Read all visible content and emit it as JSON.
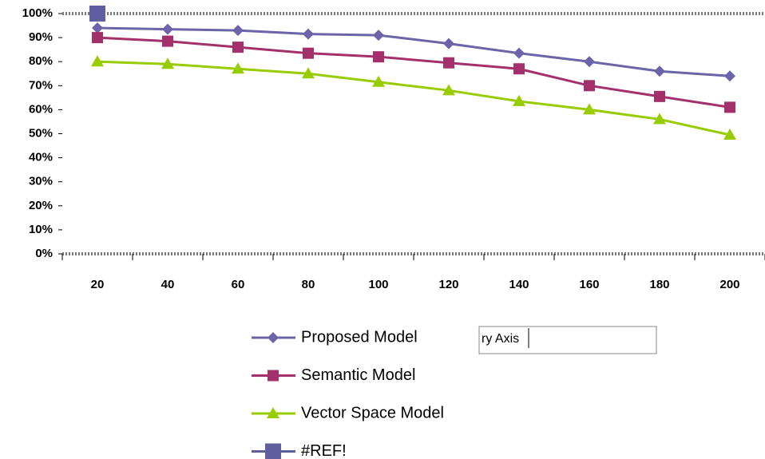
{
  "chart_data": {
    "type": "line",
    "categories": [
      "20",
      "40",
      "60",
      "80",
      "100",
      "120",
      "140",
      "160",
      "180",
      "200"
    ],
    "series": [
      {
        "name": "Proposed Model",
        "color": "#6b64a8",
        "marker": "diamond",
        "values": [
          94,
          93.5,
          93,
          91.5,
          91,
          87.5,
          83.5,
          80,
          76,
          74
        ]
      },
      {
        "name": "Semantic Model",
        "color": "#a3306b",
        "marker": "square",
        "values": [
          90,
          88.5,
          86,
          83.5,
          82,
          79.5,
          77,
          70,
          65.5,
          61
        ]
      },
      {
        "name": "Vector Space Model",
        "color": "#99cc00",
        "marker": "triangle",
        "values": [
          80,
          79,
          77,
          75,
          71.5,
          68,
          63.5,
          60,
          56,
          49.5
        ]
      },
      {
        "name": "#REF!",
        "color": "#5f5f9e",
        "marker": "bigsquare",
        "values": [
          100,
          null,
          null,
          null,
          null,
          null,
          null,
          null,
          null,
          null
        ]
      }
    ],
    "ylim": [
      0,
      100
    ],
    "yticks": [
      {
        "value": 0,
        "label": "0%"
      },
      {
        "value": 10,
        "label": "10%"
      },
      {
        "value": 20,
        "label": "20%"
      },
      {
        "value": 30,
        "label": "30%"
      },
      {
        "value": 40,
        "label": "40%"
      },
      {
        "value": 50,
        "label": "50%"
      },
      {
        "value": 60,
        "label": "60%"
      },
      {
        "value": 70,
        "label": "70%"
      },
      {
        "value": 80,
        "label": "80%"
      },
      {
        "value": 90,
        "label": "90%"
      },
      {
        "value": 100,
        "label": "100%"
      }
    ],
    "annotation": "ry Axis"
  }
}
